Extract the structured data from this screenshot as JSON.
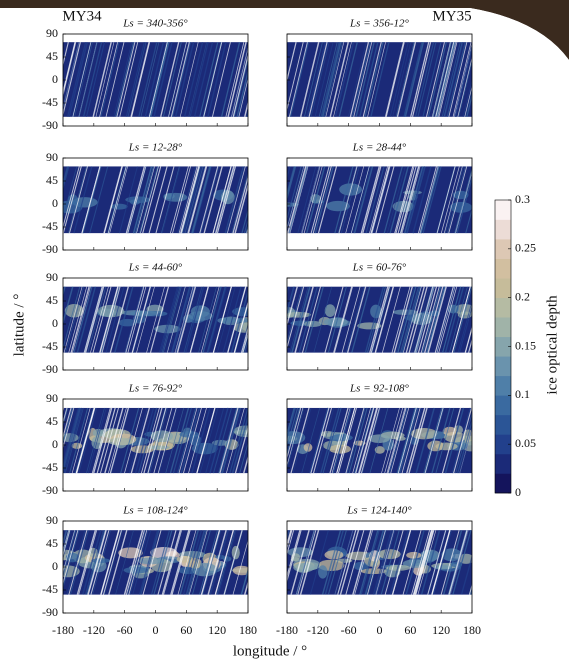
{
  "figure": {
    "columns": [
      "MY34",
      "MY35"
    ],
    "axes": {
      "xlabel": "longitude / °",
      "ylabel": "latitude / °",
      "xlim": [
        -180,
        180
      ],
      "ylim": [
        -90,
        90
      ],
      "xticks": [
        -180,
        -120,
        -60,
        0,
        60,
        120,
        180
      ],
      "yticks": [
        90,
        45,
        0,
        -45,
        -90
      ]
    },
    "colorbar": {
      "label": "ice optical depth",
      "lim": [
        0,
        0.3
      ],
      "ticks": [
        0,
        0.05,
        0.1,
        0.15,
        0.2,
        0.25,
        0.3
      ],
      "colors": [
        "#14145c",
        "#1b2a78",
        "#22408c",
        "#2b5596",
        "#3a6aa0",
        "#4f7fa8",
        "#6a93ad",
        "#86a5ac",
        "#a0b3a8",
        "#b5bba3",
        "#c6bc9a",
        "#d2bfa0",
        "#ddc8b4",
        "#ecdcd6",
        "#faf2f2"
      ]
    }
  },
  "chart_data": [
    {
      "type": "heatmap",
      "title": "Ls = 340-356°"
    },
    {
      "type": "heatmap",
      "title": "Ls = 356-12°"
    },
    {
      "type": "heatmap",
      "title": "Ls = 12-28°"
    },
    {
      "type": "heatmap",
      "title": "Ls = 28-44°"
    },
    {
      "type": "heatmap",
      "title": "Ls = 44-60°"
    },
    {
      "type": "heatmap",
      "title": "Ls = 60-76°"
    },
    {
      "type": "heatmap",
      "title": "Ls = 76-92°"
    },
    {
      "type": "heatmap",
      "title": "Ls = 92-108°"
    },
    {
      "type": "heatmap",
      "title": "Ls = 108-124°"
    },
    {
      "type": "heatmap",
      "title": "Ls = 124-140°"
    }
  ]
}
